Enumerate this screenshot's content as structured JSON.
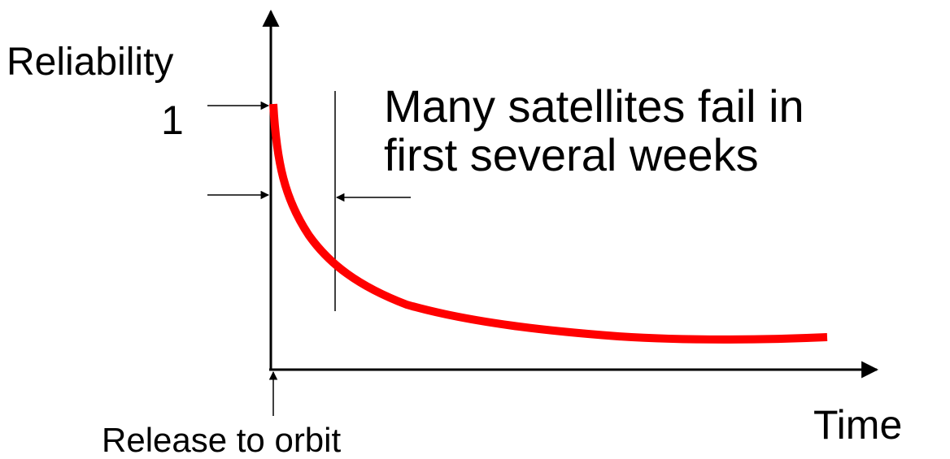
{
  "labels": {
    "y_axis": "Reliability",
    "y_marker": "1",
    "x_axis": "Time",
    "origin": "Release to orbit",
    "annotation": [
      "Many satellites fail in",
      "first several weeks"
    ]
  }
}
